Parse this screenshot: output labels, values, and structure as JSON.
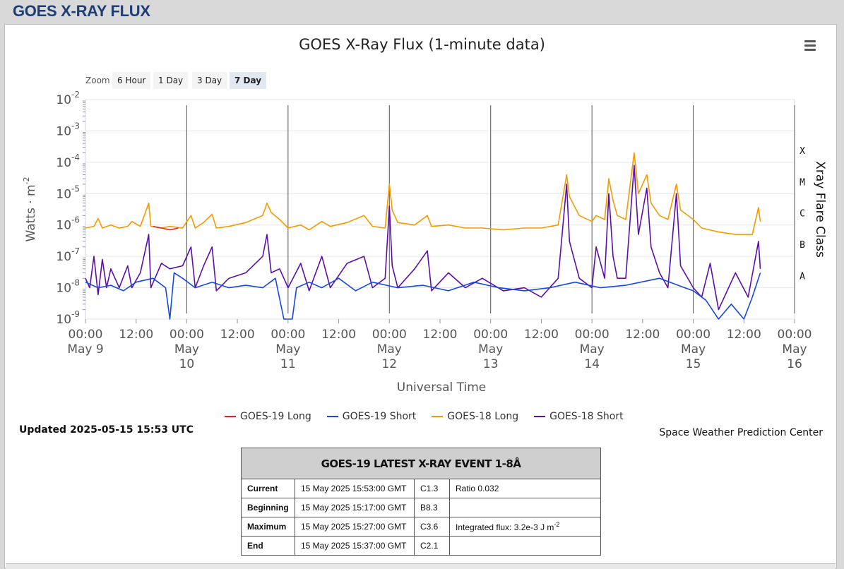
{
  "page": {
    "header_title": "GOES X-RAY FLUX"
  },
  "chart_header": {
    "title": "GOES X-Ray Flux (1-minute data)"
  },
  "zoom": {
    "label": "Zoom",
    "buttons": [
      {
        "label": "6 Hour",
        "active": false
      },
      {
        "label": "1 Day",
        "active": false
      },
      {
        "label": "3 Day",
        "active": false
      },
      {
        "label": "7 Day",
        "active": true
      }
    ]
  },
  "legend": {
    "items": [
      {
        "label": "GOES-19 Long",
        "color": "#e8201c"
      },
      {
        "label": "GOES-19 Short",
        "color": "#1747e6"
      },
      {
        "label": "GOES-18 Long",
        "color": "#f59a00"
      },
      {
        "label": "GOES-18 Short",
        "color": "#5b0fa8"
      }
    ]
  },
  "footer": {
    "updated": "Updated 2025-05-15 15:53 UTC",
    "credit": "Space Weather Prediction Center"
  },
  "event_table": {
    "title": "GOES-19 LATEST X-RAY EVENT 1-8Å",
    "rows": [
      {
        "label": "Current",
        "time": "15 May 2025 15:53:00 GMT",
        "class": "C1.3",
        "note": "Ratio 0.032"
      },
      {
        "label": "Beginning",
        "time": "15 May 2025 15:17:00 GMT",
        "class": "B8.3",
        "note": ""
      },
      {
        "label": "Maximum",
        "time": "15 May 2025 15:27:00 GMT",
        "class": "C3.6",
        "note": "Integrated flux: 3.2e-3 J m",
        "note_sup": "-2"
      },
      {
        "label": "End",
        "time": "15 May 2025 15:37:00 GMT",
        "class": "C2.1",
        "note": ""
      }
    ]
  },
  "chart_data": {
    "type": "line",
    "title": "GOES X-Ray Flux (1-minute data)",
    "xlabel": "Universal Time",
    "ylabel": "Watts · m",
    "ylabel_sup": "-2",
    "y_scale": "log",
    "ylim": [
      1e-09,
      0.01
    ],
    "xlim": [
      "2025-05-09T00:00",
      "2025-05-16T00:00"
    ],
    "grid": true,
    "legend_position": "bottom",
    "y_ticks": [
      {
        "base": "10",
        "exp": "-9",
        "value": 1e-09
      },
      {
        "base": "10",
        "exp": "-8",
        "value": 1e-08
      },
      {
        "base": "10",
        "exp": "-7",
        "value": 1e-07
      },
      {
        "base": "10",
        "exp": "-6",
        "value": 1e-06
      },
      {
        "base": "10",
        "exp": "-5",
        "value": 1e-05
      },
      {
        "base": "10",
        "exp": "-4",
        "value": 0.0001
      },
      {
        "base": "10",
        "exp": "-3",
        "value": 0.001
      },
      {
        "base": "10",
        "exp": "-2",
        "value": 0.01
      }
    ],
    "x_ticks": [
      {
        "time": "2025-05-09T00:00",
        "line1": "00:00",
        "line2": "May",
        "line3": "9",
        "inline": true
      },
      {
        "time": "2025-05-09T12:00",
        "line1": "12:00"
      },
      {
        "time": "2025-05-10T00:00",
        "line1": "00:00",
        "line2": "May",
        "line3": "10"
      },
      {
        "time": "2025-05-10T12:00",
        "line1": "12:00"
      },
      {
        "time": "2025-05-11T00:00",
        "line1": "00:00",
        "line2": "May",
        "line3": "11"
      },
      {
        "time": "2025-05-11T12:00",
        "line1": "12:00"
      },
      {
        "time": "2025-05-12T00:00",
        "line1": "00:00",
        "line2": "May",
        "line3": "12"
      },
      {
        "time": "2025-05-12T12:00",
        "line1": "12:00"
      },
      {
        "time": "2025-05-13T00:00",
        "line1": "00:00",
        "line2": "May",
        "line3": "13"
      },
      {
        "time": "2025-05-13T12:00",
        "line1": "12:00"
      },
      {
        "time": "2025-05-14T00:00",
        "line1": "00:00",
        "line2": "May",
        "line3": "14"
      },
      {
        "time": "2025-05-14T12:00",
        "line1": "12:00"
      },
      {
        "time": "2025-05-15T00:00",
        "line1": "00:00",
        "line2": "May",
        "line3": "15"
      },
      {
        "time": "2025-05-15T12:00",
        "line1": "12:00"
      },
      {
        "time": "2025-05-16T00:00",
        "line1": "00:00",
        "line2": "May",
        "line3": "16"
      }
    ],
    "secondary_axis": {
      "label": "Xray Flare Class",
      "classes": [
        {
          "label": "X",
          "value": 0.0001
        },
        {
          "label": "M",
          "value": 1e-05
        },
        {
          "label": "C",
          "value": 1e-06
        },
        {
          "label": "B",
          "value": 1e-07
        },
        {
          "label": "A",
          "value": 1e-08
        }
      ]
    },
    "series": [
      {
        "name": "GOES-18 Long",
        "color": "#f59a00",
        "points": [
          [
            "2025-05-09T00:00",
            8e-07
          ],
          [
            "2025-05-09T02:00",
            9e-07
          ],
          [
            "2025-05-09T03:00",
            1.6e-06
          ],
          [
            "2025-05-09T04:00",
            8e-07
          ],
          [
            "2025-05-09T06:00",
            1e-06
          ],
          [
            "2025-05-09T08:00",
            8e-07
          ],
          [
            "2025-05-09T10:00",
            9e-07
          ],
          [
            "2025-05-09T11:00",
            1.3e-06
          ],
          [
            "2025-05-09T13:00",
            9e-07
          ],
          [
            "2025-05-09T15:00",
            5e-06
          ],
          [
            "2025-05-09T15:30",
            9e-07
          ],
          [
            "2025-05-09T18:00",
            8e-07
          ],
          [
            "2025-05-09T20:00",
            9e-07
          ],
          [
            "2025-05-09T23:00",
            8e-07
          ],
          [
            "2025-05-10T01:00",
            2e-06
          ],
          [
            "2025-05-10T02:00",
            8e-07
          ],
          [
            "2025-05-10T04:00",
            1.2e-06
          ],
          [
            "2025-05-10T06:00",
            2.2e-06
          ],
          [
            "2025-05-10T07:00",
            8e-07
          ],
          [
            "2025-05-10T10:00",
            9e-07
          ],
          [
            "2025-05-10T14:00",
            1.2e-06
          ],
          [
            "2025-05-10T18:00",
            2e-06
          ],
          [
            "2025-05-10T19:00",
            5e-06
          ],
          [
            "2025-05-10T20:00",
            2.5e-06
          ],
          [
            "2025-05-10T22:00",
            1.5e-06
          ],
          [
            "2025-05-11T00:00",
            8e-07
          ],
          [
            "2025-05-11T03:00",
            1e-06
          ],
          [
            "2025-05-11T05:00",
            7e-07
          ],
          [
            "2025-05-11T08:00",
            1.3e-06
          ],
          [
            "2025-05-11T10:00",
            9e-07
          ],
          [
            "2025-05-11T14:00",
            1.2e-06
          ],
          [
            "2025-05-11T18:00",
            2e-06
          ],
          [
            "2025-05-11T20:00",
            9e-07
          ],
          [
            "2025-05-11T23:00",
            8e-07
          ],
          [
            "2025-05-12T00:00",
            2e-05
          ],
          [
            "2025-05-12T00:40",
            3e-06
          ],
          [
            "2025-05-12T02:00",
            1.2e-06
          ],
          [
            "2025-05-12T06:00",
            1e-06
          ],
          [
            "2025-05-12T09:00",
            2e-06
          ],
          [
            "2025-05-12T10:00",
            9e-07
          ],
          [
            "2025-05-12T14:00",
            1e-06
          ],
          [
            "2025-05-12T18:00",
            8e-07
          ],
          [
            "2025-05-12T22:00",
            8e-07
          ],
          [
            "2025-05-13T03:00",
            7e-07
          ],
          [
            "2025-05-13T08:00",
            8e-07
          ],
          [
            "2025-05-13T12:00",
            8e-07
          ],
          [
            "2025-05-13T16:00",
            1e-06
          ],
          [
            "2025-05-13T18:00",
            4e-05
          ],
          [
            "2025-05-13T18:40",
            8e-06
          ],
          [
            "2025-05-13T21:00",
            2e-06
          ],
          [
            "2025-05-14T00:00",
            1.3e-06
          ],
          [
            "2025-05-14T01:00",
            2e-06
          ],
          [
            "2025-05-14T03:00",
            1.5e-06
          ],
          [
            "2025-05-14T04:00",
            3e-05
          ],
          [
            "2025-05-14T05:00",
            6e-06
          ],
          [
            "2025-05-14T06:00",
            2e-06
          ],
          [
            "2025-05-14T08:00",
            1.5e-06
          ],
          [
            "2025-05-14T10:00",
            0.0002
          ],
          [
            "2025-05-14T11:00",
            1e-05
          ],
          [
            "2025-05-14T13:00",
            4e-05
          ],
          [
            "2025-05-14T14:00",
            5e-06
          ],
          [
            "2025-05-14T16:00",
            2e-06
          ],
          [
            "2025-05-14T18:00",
            1.5e-06
          ],
          [
            "2025-05-14T20:00",
            2e-05
          ],
          [
            "2025-05-14T21:00",
            3e-06
          ],
          [
            "2025-05-15T00:00",
            1.5e-06
          ],
          [
            "2025-05-15T02:00",
            8e-07
          ],
          [
            "2025-05-15T06:00",
            6e-07
          ],
          [
            "2025-05-15T10:00",
            5e-07
          ],
          [
            "2025-05-15T14:00",
            5e-07
          ],
          [
            "2025-05-15T15:27",
            3.6e-06
          ],
          [
            "2025-05-15T15:53",
            1.3e-06
          ]
        ]
      },
      {
        "name": "GOES-18 Short",
        "color": "#5b0fa8",
        "points": [
          [
            "2025-05-09T00:00",
            2e-08
          ],
          [
            "2025-05-09T01:00",
            1e-08
          ],
          [
            "2025-05-09T02:00",
            1e-07
          ],
          [
            "2025-05-09T03:00",
            6e-09
          ],
          [
            "2025-05-09T04:00",
            8e-08
          ],
          [
            "2025-05-09T05:00",
            1e-08
          ],
          [
            "2025-05-09T06:00",
            4e-08
          ],
          [
            "2025-05-09T08:00",
            1e-08
          ],
          [
            "2025-05-09T10:00",
            5e-08
          ],
          [
            "2025-05-09T11:00",
            1e-08
          ],
          [
            "2025-05-09T13:00",
            3e-08
          ],
          [
            "2025-05-09T15:00",
            5e-07
          ],
          [
            "2025-05-09T15:30",
            1e-08
          ],
          [
            "2025-05-09T18:00",
            6e-08
          ],
          [
            "2025-05-09T20:00",
            4e-08
          ],
          [
            "2025-05-09T23:00",
            5e-08
          ],
          [
            "2025-05-10T01:00",
            2e-07
          ],
          [
            "2025-05-10T02:00",
            1e-08
          ],
          [
            "2025-05-10T04:00",
            5e-08
          ],
          [
            "2025-05-10T06:00",
            2e-07
          ],
          [
            "2025-05-10T07:00",
            8e-09
          ],
          [
            "2025-05-10T10:00",
            2e-08
          ],
          [
            "2025-05-10T14:00",
            3e-08
          ],
          [
            "2025-05-10T18:00",
            1e-07
          ],
          [
            "2025-05-10T19:00",
            5e-07
          ],
          [
            "2025-05-10T20:00",
            3e-08
          ],
          [
            "2025-05-10T22:00",
            4e-08
          ],
          [
            "2025-05-11T00:00",
            1e-08
          ],
          [
            "2025-05-11T03:00",
            6e-08
          ],
          [
            "2025-05-11T05:00",
            8e-09
          ],
          [
            "2025-05-11T08:00",
            1e-07
          ],
          [
            "2025-05-11T10:00",
            1e-08
          ],
          [
            "2025-05-11T14:00",
            6e-08
          ],
          [
            "2025-05-11T18:00",
            1e-07
          ],
          [
            "2025-05-11T20:00",
            1e-08
          ],
          [
            "2025-05-11T23:00",
            2e-08
          ],
          [
            "2025-05-12T00:00",
            4e-06
          ],
          [
            "2025-05-12T00:40",
            5e-08
          ],
          [
            "2025-05-12T02:00",
            1e-08
          ],
          [
            "2025-05-12T06:00",
            4e-08
          ],
          [
            "2025-05-12T09:00",
            1.5e-07
          ],
          [
            "2025-05-12T10:00",
            8e-09
          ],
          [
            "2025-05-12T14:00",
            3e-08
          ],
          [
            "2025-05-12T18:00",
            1e-08
          ],
          [
            "2025-05-12T22:00",
            2e-08
          ],
          [
            "2025-05-13T03:00",
            8e-09
          ],
          [
            "2025-05-13T08:00",
            1e-08
          ],
          [
            "2025-05-13T12:00",
            5e-09
          ],
          [
            "2025-05-13T16:00",
            2e-08
          ],
          [
            "2025-05-13T18:00",
            2e-05
          ],
          [
            "2025-05-13T18:40",
            3e-07
          ],
          [
            "2025-05-13T21:00",
            2e-08
          ],
          [
            "2025-05-14T00:00",
            1e-08
          ],
          [
            "2025-05-14T01:00",
            2e-07
          ],
          [
            "2025-05-14T03:00",
            2e-08
          ],
          [
            "2025-05-14T04:00",
            1e-05
          ],
          [
            "2025-05-14T05:00",
            1e-07
          ],
          [
            "2025-05-14T06:00",
            2e-08
          ],
          [
            "2025-05-14T08:00",
            2e-08
          ],
          [
            "2025-05-14T10:00",
            8e-05
          ],
          [
            "2025-05-14T11:00",
            5e-07
          ],
          [
            "2025-05-14T13:00",
            1.5e-05
          ],
          [
            "2025-05-14T14:00",
            2e-07
          ],
          [
            "2025-05-14T16:00",
            3e-08
          ],
          [
            "2025-05-14T18:00",
            1e-08
          ],
          [
            "2025-05-14T20:00",
            1e-05
          ],
          [
            "2025-05-14T21:00",
            5e-08
          ],
          [
            "2025-05-15T00:00",
            1e-08
          ],
          [
            "2025-05-15T02:00",
            5e-09
          ],
          [
            "2025-05-15T04:00",
            6e-08
          ],
          [
            "2025-05-15T06:00",
            2e-09
          ],
          [
            "2025-05-15T10:00",
            3e-08
          ],
          [
            "2025-05-15T13:00",
            5e-09
          ],
          [
            "2025-05-15T15:27",
            3e-07
          ],
          [
            "2025-05-15T15:53",
            4e-08
          ]
        ]
      },
      {
        "name": "GOES-19 Long",
        "color": "#e8201c",
        "points": [
          [
            "2025-05-09T16:00",
            9e-07
          ],
          [
            "2025-05-09T18:00",
            8e-07
          ],
          [
            "2025-05-09T20:00",
            7e-07
          ],
          [
            "2025-05-09T22:00",
            8e-07
          ]
        ]
      },
      {
        "name": "GOES-19 Short",
        "color": "#1747e6",
        "points": [
          [
            "2025-05-09T00:00",
            1.5e-08
          ],
          [
            "2025-05-09T03:00",
            1e-08
          ],
          [
            "2025-05-09T06:00",
            1.2e-08
          ],
          [
            "2025-05-09T09:00",
            8e-09
          ],
          [
            "2025-05-09T12:00",
            1.5e-08
          ],
          [
            "2025-05-09T16:00",
            2e-08
          ],
          [
            "2025-05-09T19:00",
            1e-08
          ],
          [
            "2025-05-09T20:00",
            7e-10
          ],
          [
            "2025-05-09T21:00",
            3e-08
          ],
          [
            "2025-05-09T23:00",
            2e-08
          ],
          [
            "2025-05-10T02:00",
            1e-08
          ],
          [
            "2025-05-10T06:00",
            1.5e-08
          ],
          [
            "2025-05-10T10:00",
            1e-08
          ],
          [
            "2025-05-10T14:00",
            1.2e-08
          ],
          [
            "2025-05-10T18:00",
            1e-08
          ],
          [
            "2025-05-10T21:00",
            2e-08
          ],
          [
            "2025-05-10T23:00",
            5e-10
          ],
          [
            "2025-05-11T01:00",
            5e-10
          ],
          [
            "2025-05-11T02:00",
            1e-08
          ],
          [
            "2025-05-11T05:00",
            1.5e-08
          ],
          [
            "2025-05-11T08:00",
            1e-08
          ],
          [
            "2025-05-11T12:00",
            2e-08
          ],
          [
            "2025-05-11T16:00",
            8e-09
          ],
          [
            "2025-05-11T20:00",
            1.5e-08
          ],
          [
            "2025-05-12T02:00",
            1e-08
          ],
          [
            "2025-05-12T08:00",
            1.2e-08
          ],
          [
            "2025-05-12T14:00",
            8e-09
          ],
          [
            "2025-05-12T20:00",
            1.5e-08
          ],
          [
            "2025-05-13T02:00",
            1e-08
          ],
          [
            "2025-05-13T08:00",
            8e-09
          ],
          [
            "2025-05-13T14:00",
            1e-08
          ],
          [
            "2025-05-13T20:00",
            1.5e-08
          ],
          [
            "2025-05-14T02:00",
            1e-08
          ],
          [
            "2025-05-14T08:00",
            1.2e-08
          ],
          [
            "2025-05-14T16:00",
            2e-08
          ],
          [
            "2025-05-14T22:00",
            1e-08
          ],
          [
            "2025-05-15T00:00",
            8e-09
          ],
          [
            "2025-05-15T03:00",
            4e-09
          ],
          [
            "2025-05-15T06:00",
            1e-09
          ],
          [
            "2025-05-15T09:00",
            3e-09
          ],
          [
            "2025-05-15T12:00",
            8e-10
          ],
          [
            "2025-05-15T14:00",
            5e-09
          ],
          [
            "2025-05-15T15:53",
            3e-08
          ]
        ]
      }
    ]
  }
}
